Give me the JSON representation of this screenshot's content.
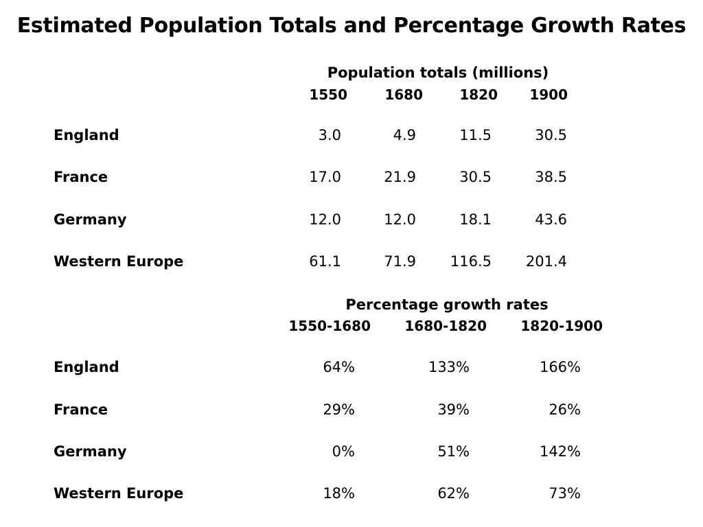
{
  "title": "Estimated Population Totals and Percentage Growth Rates",
  "population": {
    "caption": "Population totals (millions)",
    "columns": [
      "1550",
      "1680",
      "1820",
      "1900"
    ],
    "rows": [
      {
        "label": "England",
        "values": [
          "3.0",
          "4.9",
          "11.5",
          "30.5"
        ]
      },
      {
        "label": "France",
        "values": [
          "17.0",
          "21.9",
          "30.5",
          "38.5"
        ]
      },
      {
        "label": "Germany",
        "values": [
          "12.0",
          "12.0",
          "18.1",
          "43.6"
        ]
      },
      {
        "label": "Western Europe",
        "values": [
          "61.1",
          "71.9",
          "116.5",
          "201.4"
        ]
      }
    ]
  },
  "growth": {
    "caption": "Percentage growth rates",
    "columns": [
      "1550-1680",
      "1680-1820",
      "1820-1900"
    ],
    "rows": [
      {
        "label": "England",
        "values": [
          "64%",
          "133%",
          "166%"
        ]
      },
      {
        "label": "France",
        "values": [
          "29%",
          "39%",
          "26%"
        ]
      },
      {
        "label": "Germany",
        "values": [
          "0%",
          "51%",
          "142%"
        ]
      },
      {
        "label": "Western Europe",
        "values": [
          "18%",
          "62%",
          "73%"
        ]
      }
    ]
  }
}
